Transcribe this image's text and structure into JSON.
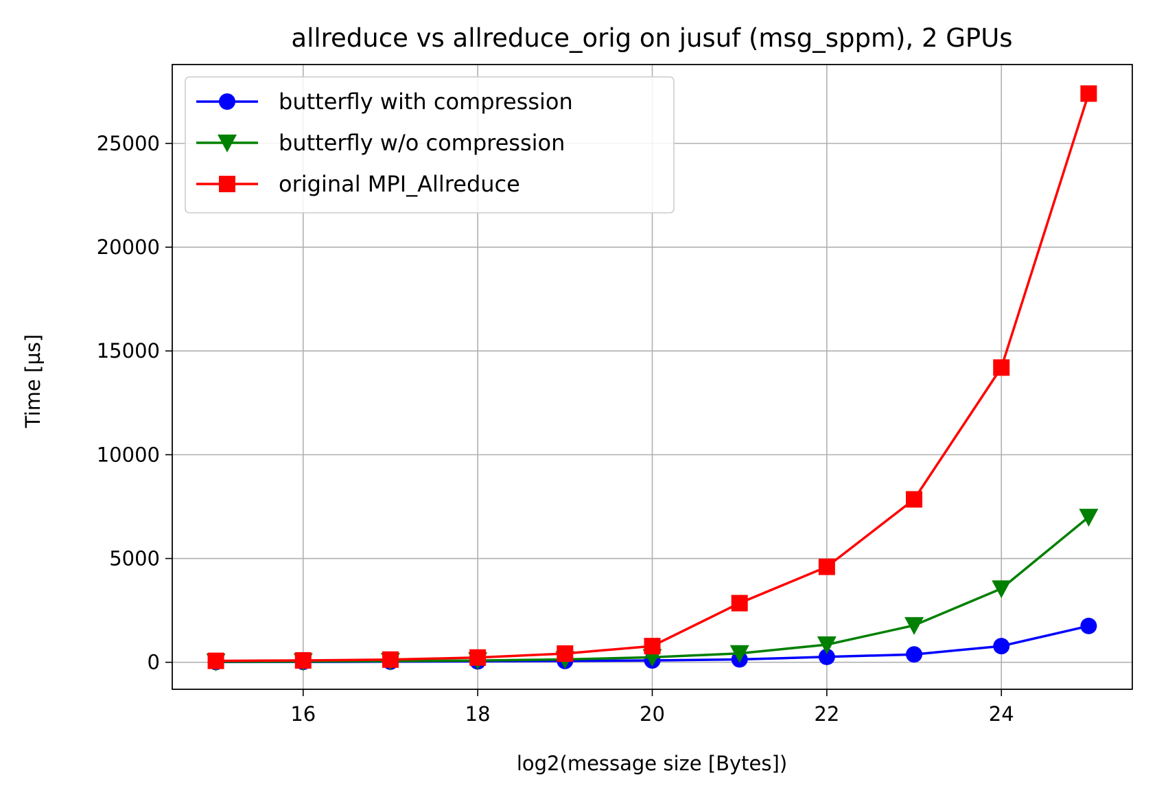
{
  "chart_data": {
    "type": "line",
    "title": "allreduce vs allreduce_orig on jusuf (msg_sppm), 2 GPUs",
    "xlabel": "log2(message size [Bytes])",
    "ylabel": "Time [µs]",
    "xlim": [
      14.5,
      25.5
    ],
    "ylim": [
      -1300,
      28800
    ],
    "xticks": [
      16,
      18,
      20,
      22,
      24
    ],
    "yticks": [
      0,
      5000,
      10000,
      15000,
      20000,
      25000
    ],
    "grid": true,
    "legend_position": "upper-left",
    "x": [
      15,
      16,
      17,
      18,
      19,
      20,
      21,
      22,
      23,
      24,
      25
    ],
    "series": [
      {
        "name": "butterfly with compression",
        "color": "#0000ff",
        "marker": "circle",
        "values": [
          15,
          20,
          30,
          45,
          65,
          90,
          140,
          260,
          380,
          780,
          1750
        ]
      },
      {
        "name": "butterfly w/o compression",
        "color": "#008000",
        "marker": "triangle-down",
        "values": [
          25,
          35,
          55,
          85,
          140,
          240,
          430,
          850,
          1780,
          3550,
          7000
        ]
      },
      {
        "name": "original MPI_Allreduce",
        "color": "#ff0000",
        "marker": "square",
        "values": [
          70,
          90,
          130,
          230,
          420,
          780,
          2850,
          4600,
          7850,
          14200,
          27400
        ]
      }
    ]
  }
}
